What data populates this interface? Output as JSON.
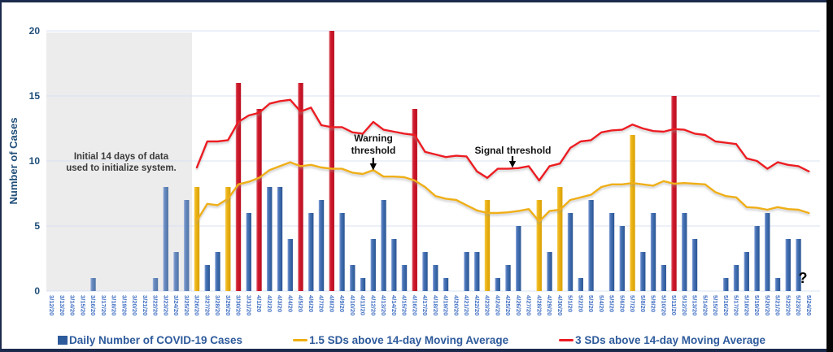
{
  "y_axis": {
    "title": "Number of Cases",
    "ticks": [
      0,
      5,
      10,
      15,
      20
    ]
  },
  "annotations": {
    "init_note_line1": "Initial 14 days of data",
    "init_note_line2": "used to initialize system.",
    "warning_line1": "Warning",
    "warning_line2": "threshold",
    "signal": "Signal threshold",
    "question_mark": "?"
  },
  "legend": [
    {
      "label": "Daily Number of COVID-19 Cases",
      "marker": "square",
      "color": "#2E5B9C"
    },
    {
      "label": "1.5 SDs above 14-day Moving Average",
      "marker": "line",
      "color": "#EFAF13"
    },
    {
      "label": "3 SDs above 14-day Moving Average",
      "marker": "line",
      "color": "#EC1C24"
    }
  ],
  "colors": {
    "bar_normal": "#3A67AE",
    "bar_warning": "#E6AC00",
    "bar_signal": "#C81626",
    "warning_line": "#EFAF13",
    "signal_line": "#EC1C24",
    "gridline": "#D9E1F2",
    "axis_text": "#1F4E79",
    "tick_text": "#4472C4",
    "init_region": "#ECECEC"
  },
  "chart_data": {
    "type": "bar",
    "title": "",
    "xlabel": "",
    "ylabel": "Number of Cases",
    "ylim": [
      0,
      20
    ],
    "grid": true,
    "legend_position": "bottom",
    "categories": [
      "3/12/20",
      "3/13/20",
      "3/14/20",
      "3/15/20",
      "3/16/20",
      "3/17/20",
      "3/18/20",
      "3/19/20",
      "3/20/20",
      "3/21/20",
      "3/22/20",
      "3/23/20",
      "3/24/20",
      "3/25/20",
      "3/26/20",
      "3/27/20",
      "3/28/20",
      "3/29/20",
      "3/30/20",
      "3/31/20",
      "4/1/20",
      "4/2/20",
      "4/3/20",
      "4/4/20",
      "4/5/20",
      "4/6/20",
      "4/7/20",
      "4/8/20",
      "4/9/20",
      "4/10/20",
      "4/11/20",
      "4/12/20",
      "4/13/20",
      "4/14/20",
      "4/15/20",
      "4/16/20",
      "4/17/20",
      "4/18/20",
      "4/19/20",
      "4/20/20",
      "4/21/20",
      "4/22/20",
      "4/23/20",
      "4/24/20",
      "4/25/20",
      "4/26/20",
      "4/27/20",
      "4/28/20",
      "4/29/20",
      "4/30/20",
      "5/1/20",
      "5/2/20",
      "5/3/20",
      "5/4/20",
      "5/5/20",
      "5/6/20",
      "5/7/20",
      "5/8/20",
      "5/9/20",
      "5/10/20",
      "5/11/20",
      "5/12/20",
      "5/13/20",
      "5/14/20",
      "5/15/20",
      "5/16/20",
      "5/17/20",
      "5/18/20",
      "5/19/20",
      "5/20/20",
      "5/21/20",
      "5/22/20",
      "5/23/20",
      "5/24/20"
    ],
    "series": [
      {
        "name": "Daily Number of COVID-19 Cases",
        "type": "bar",
        "values": [
          0,
          0,
          0,
          0,
          1,
          0,
          0,
          0,
          0,
          0,
          1,
          8,
          3,
          7,
          8,
          2,
          3,
          8,
          16,
          6,
          14,
          8,
          8,
          4,
          16,
          6,
          7,
          20,
          6,
          2,
          1,
          4,
          7,
          4,
          2,
          14,
          3,
          2,
          1,
          0,
          3,
          3,
          7,
          1,
          2,
          5,
          0,
          7,
          3,
          8,
          6,
          1,
          7,
          0,
          6,
          5,
          12,
          3,
          6,
          2,
          15,
          6,
          4,
          0,
          0,
          1,
          2,
          3,
          5,
          6,
          1,
          4,
          4,
          0
        ]
      },
      {
        "name": "1.5 SDs above 14-day Moving Average",
        "type": "line",
        "color": "#EFAF13",
        "values": [
          null,
          null,
          null,
          null,
          null,
          null,
          null,
          null,
          null,
          null,
          null,
          null,
          null,
          null,
          5.4,
          6.7,
          6.6,
          7.1,
          8.2,
          8.4,
          8.7,
          9.3,
          9.6,
          9.9,
          9.6,
          9.7,
          9.5,
          9.4,
          9.4,
          9.1,
          9.0,
          9.3,
          8.8,
          8.8,
          8.75,
          8.5,
          8.0,
          7.3,
          7.1,
          7.0,
          6.6,
          6.2,
          6.0,
          6.0,
          6.05,
          6.15,
          6.3,
          5.35,
          6.15,
          6.25,
          7.0,
          7.2,
          7.4,
          8.0,
          8.2,
          8.2,
          8.3,
          8.2,
          8.1,
          8.45,
          8.25,
          8.3,
          8.25,
          8.2,
          7.6,
          7.3,
          7.2,
          6.45,
          6.4,
          6.25,
          6.45,
          6.3,
          6.25,
          6.0
        ]
      },
      {
        "name": "3 SDs above 14-day Moving Average",
        "type": "line",
        "color": "#EC1C24",
        "values": [
          null,
          null,
          null,
          null,
          null,
          null,
          null,
          null,
          null,
          null,
          null,
          null,
          null,
          null,
          9.5,
          11.5,
          11.5,
          11.6,
          13.0,
          13.5,
          13.7,
          14.4,
          14.6,
          14.7,
          13.8,
          14.1,
          12.75,
          12.6,
          12.6,
          12.2,
          12.1,
          13.0,
          12.4,
          12.25,
          12.1,
          12.0,
          10.7,
          10.5,
          10.3,
          10.4,
          10.35,
          9.2,
          8.7,
          9.4,
          9.4,
          9.45,
          9.6,
          8.5,
          9.6,
          9.8,
          11.0,
          11.5,
          11.6,
          12.2,
          12.35,
          12.4,
          12.8,
          12.5,
          12.3,
          12.25,
          12.45,
          12.4,
          12.1,
          12.0,
          11.5,
          11.4,
          11.3,
          10.2,
          10.0,
          9.4,
          9.9,
          9.7,
          9.6,
          9.2
        ]
      }
    ],
    "warning_dates": [
      "3/26/20",
      "3/29/20",
      "4/23/20",
      "4/28/20",
      "4/30/20",
      "5/7/20"
    ],
    "signal_dates": [
      "3/30/20",
      "4/1/20",
      "4/5/20",
      "4/8/20",
      "4/16/20",
      "5/11/20"
    ],
    "initialization_period": {
      "start": "3/12/20",
      "end": "3/25/20"
    },
    "last_point_label": "?"
  }
}
